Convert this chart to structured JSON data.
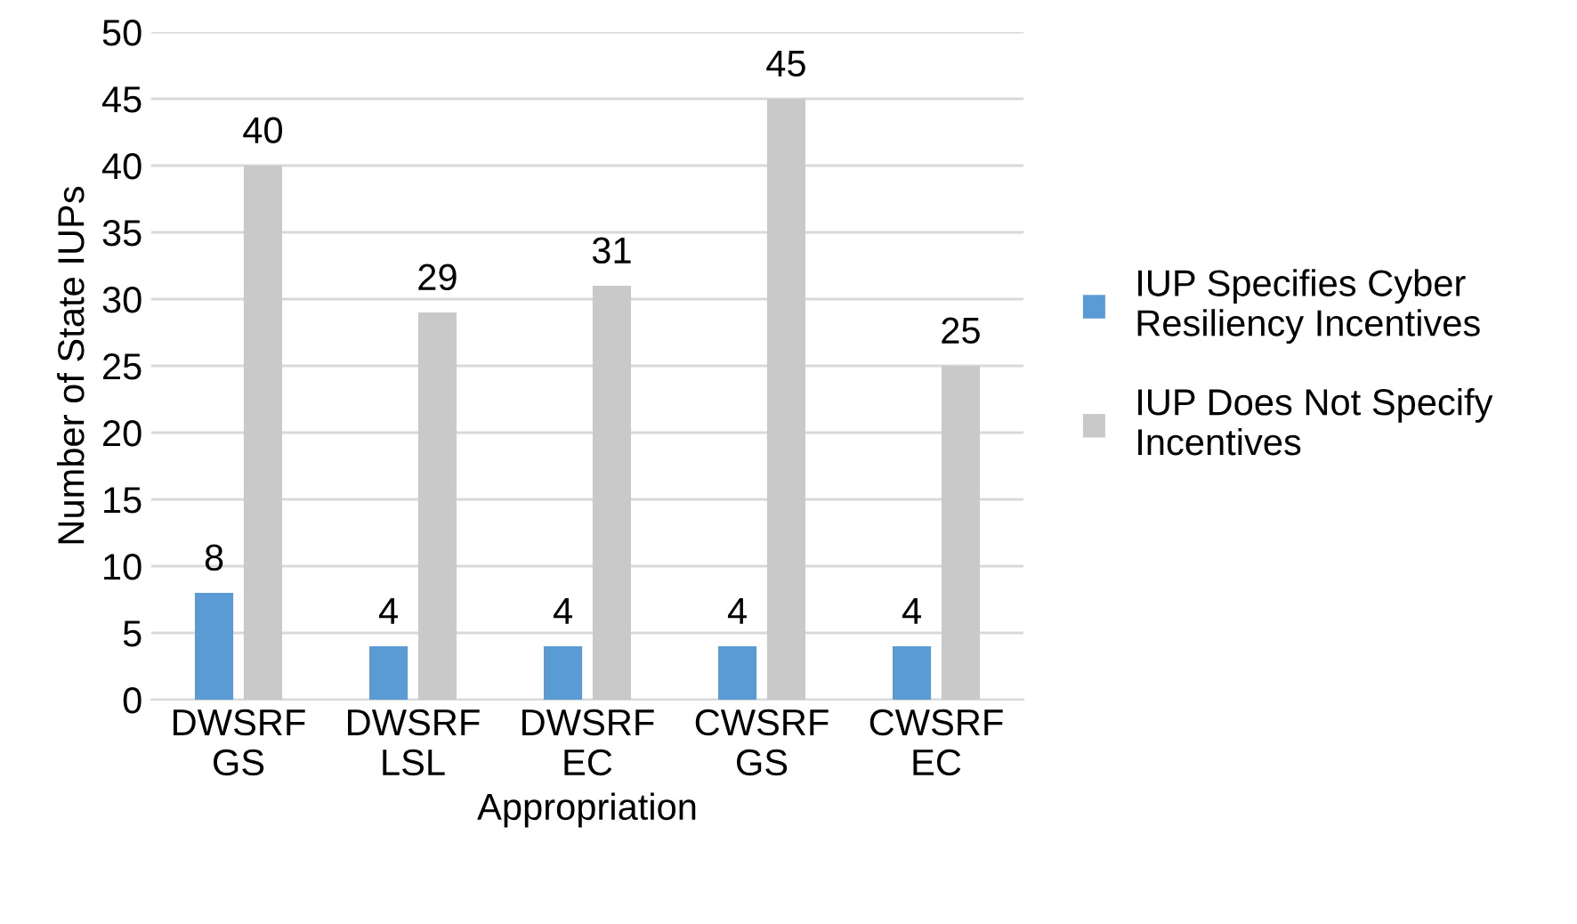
{
  "chart_data": {
    "type": "bar",
    "xlabel": "Appropriation",
    "ylabel": "Number of State IUPs",
    "categories": [
      "DWSRF\nGS",
      "DWSRF\nLSL",
      "DWSRF\nEC",
      "CWSRF\nGS",
      "CWSRF\nEC"
    ],
    "series": [
      {
        "name": "IUP Specifies Cyber\nResiliency Incentives",
        "color": "#5b9bd5",
        "values": [
          8,
          4,
          4,
          4,
          4
        ]
      },
      {
        "name": "IUP Does Not Specify\nIncentives",
        "color": "#c9c9c9",
        "values": [
          40,
          29,
          31,
          45,
          25
        ]
      }
    ],
    "ylim": [
      0,
      50
    ],
    "yticks": [
      0,
      5,
      10,
      15,
      20,
      25,
      30,
      35,
      40,
      45,
      50
    ],
    "grid": "y",
    "legend": "right",
    "data_labels": true
  }
}
